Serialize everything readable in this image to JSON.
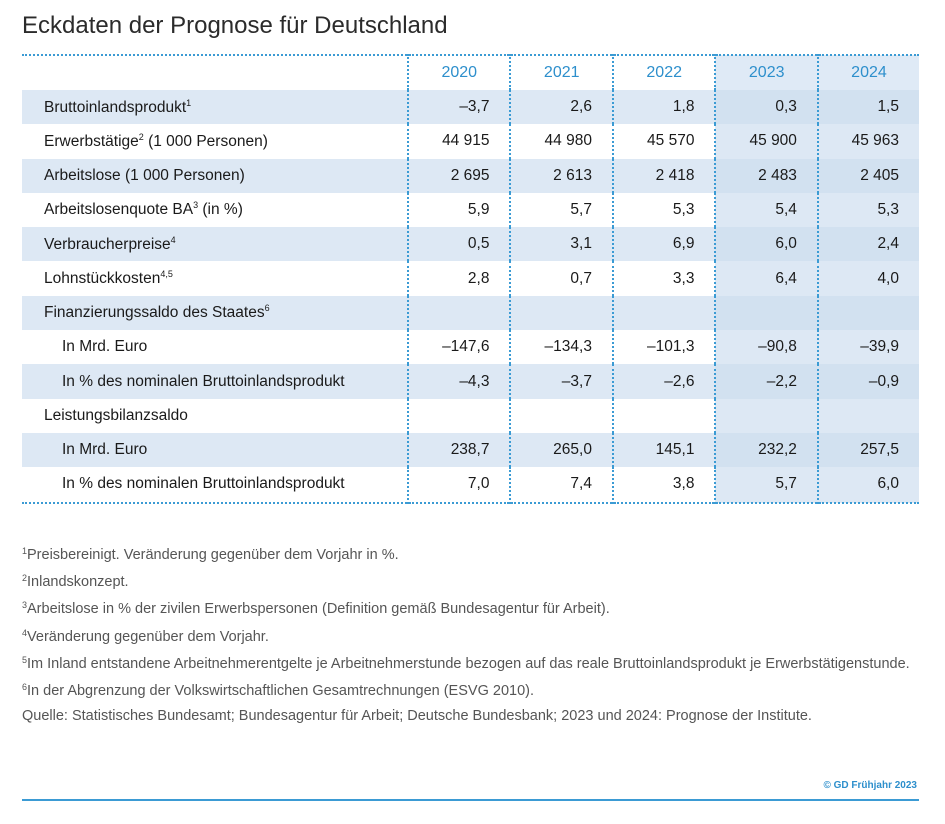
{
  "title": "Eckdaten der Prognose für Deutschland",
  "years": [
    "2020",
    "2021",
    "2022",
    "2023",
    "2024"
  ],
  "rows": [
    {
      "label": "Bruttoinlandsprodukt",
      "sup": "1",
      "values": [
        "–3,7",
        "2,6",
        "1,8",
        "0,3",
        "1,5"
      ]
    },
    {
      "label": "Erwerbstätige",
      "sup": "2",
      "label_suffix": " (1 000 Personen)",
      "values": [
        "44 915",
        "44 980",
        "45 570",
        "45 900",
        "45 963"
      ]
    },
    {
      "label": "Arbeitslose (1 000 Personen)",
      "sup": "",
      "values": [
        "2 695",
        "2 613",
        "2 418",
        "2 483",
        "2 405"
      ]
    },
    {
      "label": "Arbeitslosenquote BA",
      "sup": "3",
      "label_suffix": " (in %)",
      "values": [
        "5,9",
        "5,7",
        "5,3",
        "5,4",
        "5,3"
      ]
    },
    {
      "label": "Verbraucherpreise",
      "sup": "4",
      "values": [
        "0,5",
        "3,1",
        "6,9",
        "6,0",
        "2,4"
      ]
    },
    {
      "label": "Lohnstückkosten",
      "sup": "4,5",
      "values": [
        "2,8",
        "0,7",
        "3,3",
        "6,4",
        "4,0"
      ]
    },
    {
      "label": "Finanzierungssaldo des Staates",
      "sup": "6",
      "values": [
        "",
        "",
        "",
        "",
        ""
      ]
    },
    {
      "label": "In Mrd. Euro",
      "sup": "",
      "indent": true,
      "values": [
        "–147,6",
        "–134,3",
        "–101,3",
        "–90,8",
        "–39,9"
      ]
    },
    {
      "label": "In % des nominalen Bruttoinlandsprodukt",
      "sup": "",
      "indent": true,
      "values": [
        "–4,3",
        "–3,7",
        "–2,6",
        "–2,2",
        "–0,9"
      ]
    },
    {
      "label": "Leistungsbilanzsaldo",
      "sup": "",
      "values": [
        "",
        "",
        "",
        "",
        ""
      ]
    },
    {
      "label": "In Mrd. Euro",
      "sup": "",
      "indent": true,
      "values": [
        "238,7",
        "265,0",
        "145,1",
        "232,2",
        "257,5"
      ]
    },
    {
      "label": "In % des nominalen Bruttoinlandsprodukt",
      "sup": "",
      "indent": true,
      "values": [
        "7,0",
        "7,4",
        "3,8",
        "5,7",
        "6,0"
      ]
    }
  ],
  "footnotes": [
    {
      "sup": "1",
      "text": "Preisbereinigt. Veränderung gegenüber dem Vorjahr in %."
    },
    {
      "sup": "2",
      "text": "Inlandskonzept."
    },
    {
      "sup": "3",
      "text": "Arbeitslose in % der zivilen Erwerbspersonen (Definition gemäß Bundesagentur für Arbeit)."
    },
    {
      "sup": "4",
      "text": "Veränderung gegenüber dem Vorjahr."
    },
    {
      "sup": "5",
      "text": "Im Inland entstandene Arbeitnehmerentgelte je Arbeitnehmerstunde bezogen auf das reale Bruttoinlandsprodukt je Erwerbstätigenstunde."
    },
    {
      "sup": "6",
      "text": "In der Abgrenzung der Volkswirtschaftlichen Gesamtrechnungen (ESVG 2010)."
    }
  ],
  "source": "Quelle: Statistisches Bundesamt; Bundesagentur für Arbeit; Deutsche Bundesbank; 2023 und 2024: Prognose der Institute.",
  "copyright": "© GD Frühjahr 2023",
  "colors": {
    "accent": "#3b9bd4",
    "shade": "#dde8f4",
    "header_text": "#2d8fcc"
  }
}
